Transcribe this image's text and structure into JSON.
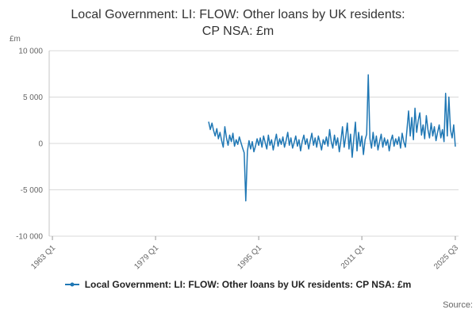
{
  "header": {
    "title_line1": "Local Government: LI: FLOW: Other loans by UK residents:",
    "title_line2": "CP NSA: £m"
  },
  "legend": {
    "label": "Local Government: LI: FLOW: Other loans by UK residents: CP NSA: £m"
  },
  "footer": {
    "source_label": "Source:"
  },
  "chart_data": {
    "type": "line",
    "title": "Local Government: LI: FLOW: Other loans by UK residents: CP NSA: £m",
    "xlabel": "",
    "ylabel": "£m",
    "frequency": "quarterly",
    "start_label": "1987 Q2",
    "end_label": "2025 Q3",
    "start": 1987.25,
    "step": 0.25,
    "xlim": [
      1962.5,
      2026
    ],
    "ylim": [
      -10000,
      10000
    ],
    "grid": "horizontal",
    "legend_position": "bottom",
    "x_ticks": [
      {
        "label": "1963 Q1",
        "value": 1963
      },
      {
        "label": "1979 Q1",
        "value": 1979
      },
      {
        "label": "1995 Q1",
        "value": 1995
      },
      {
        "label": "2011 Q1",
        "value": 2011
      },
      {
        "label": "2025 Q3",
        "value": 2025.5
      }
    ],
    "y_ticks": [
      {
        "label": "10 000",
        "value": 10000
      },
      {
        "label": "5 000",
        "value": 5000
      },
      {
        "label": "0",
        "value": 0
      },
      {
        "label": "-5 000",
        "value": -5000
      },
      {
        "label": "-10 000",
        "value": -10000
      }
    ],
    "series": [
      {
        "name": "Local Government: LI: FLOW: Other loans by UK residents: CP NSA: £m",
        "color": "#1f77b4",
        "values": [
          2300,
          1500,
          2200,
          1400,
          800,
          1600,
          500,
          1200,
          300,
          -400,
          1800,
          600,
          -200,
          900,
          200,
          1100,
          -300,
          400,
          -100,
          700,
          100,
          -500,
          -1000,
          -6200,
          -800,
          300,
          -600,
          200,
          -900,
          -300,
          500,
          -200,
          600,
          -400,
          800,
          100,
          -600,
          900,
          -200,
          400,
          -700,
          200,
          1000,
          -300,
          500,
          -100,
          700,
          -400,
          300,
          1200,
          -200,
          600,
          -500,
          100,
          800,
          -300,
          400,
          -800,
          200,
          900,
          -100,
          500,
          -600,
          300,
          1100,
          -200,
          600,
          -400,
          800,
          100,
          -700,
          400,
          -100,
          700,
          -300,
          1500,
          200,
          -500,
          900,
          -200,
          600,
          -900,
          300,
          1800,
          -400,
          700,
          2200,
          -600,
          1000,
          -1500,
          500,
          2300,
          -800,
          1200,
          -300,
          800,
          -1200,
          400,
          1000,
          7400,
          500,
          -500,
          1200,
          -300,
          800,
          -700,
          200,
          1000,
          -400,
          600,
          -200,
          400,
          -800,
          300,
          900,
          -300,
          500,
          -100,
          700,
          -500,
          1100,
          200,
          -400,
          1500,
          3500,
          800,
          2800,
          400,
          3800,
          1200,
          2500,
          3300,
          900,
          2000,
          500,
          3000,
          1500,
          600,
          2200,
          800,
          1800,
          300,
          1200,
          2000,
          600,
          1500,
          200,
          5400,
          800,
          5000,
          1500,
          600,
          2000,
          -300
        ]
      }
    ]
  }
}
